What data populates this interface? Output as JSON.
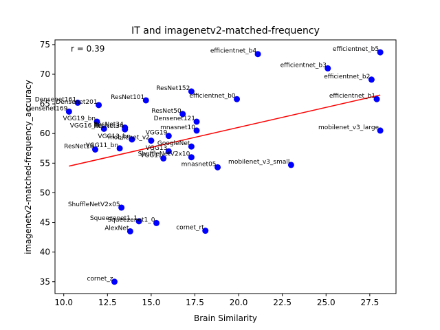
{
  "chart_data": {
    "type": "scatter",
    "title": "IT and imagenetv2-matched-frequency",
    "xlabel": "Brain Similarity",
    "ylabel": "imagenetv2-matched-frequency_accuracy",
    "annotation": "r = 0.39",
    "xlim": [
      9.5,
      29.0
    ],
    "ylim": [
      33.0,
      75.8
    ],
    "xticks": [
      10.0,
      12.5,
      15.0,
      17.5,
      20.0,
      22.5,
      25.0,
      27.5
    ],
    "xtick_labels": [
      "10.0",
      "12.5",
      "15.0",
      "17.5",
      "20.0",
      "22.5",
      "25.0",
      "27.5"
    ],
    "yticks": [
      35,
      40,
      45,
      50,
      55,
      60,
      65,
      70,
      75
    ],
    "ytick_labels": [
      "35",
      "40",
      "45",
      "50",
      "55",
      "60",
      "65",
      "70",
      "75"
    ],
    "grid": false,
    "point_color": "#0000ff",
    "fit_color": "#ff0000",
    "fit_line": {
      "x": [
        10.3,
        28.1
      ],
      "y": [
        54.5,
        66.5
      ]
    },
    "points": [
      {
        "label": "efficientnet_b5",
        "x": 28.1,
        "y": 73.7
      },
      {
        "label": "efficientnet_b4",
        "x": 21.1,
        "y": 73.4
      },
      {
        "label": "efficientnet_b3",
        "x": 25.1,
        "y": 71.0
      },
      {
        "label": "efficientnet_b2",
        "x": 27.6,
        "y": 69.1
      },
      {
        "label": "efficientnet_b1",
        "x": 27.9,
        "y": 65.8
      },
      {
        "label": "efficientnet_b0",
        "x": 19.9,
        "y": 65.8
      },
      {
        "label": "mobilenet_v3_large",
        "x": 28.1,
        "y": 60.5
      },
      {
        "label": "mobilenet_v3_small",
        "x": 23.0,
        "y": 54.7
      },
      {
        "label": "ResNet152",
        "x": 17.3,
        "y": 67.1
      },
      {
        "label": "ResNet101",
        "x": 14.7,
        "y": 65.6
      },
      {
        "label": "Densenet161",
        "x": 10.8,
        "y": 65.2
      },
      {
        "label": "Densenet201",
        "x": 12.0,
        "y": 64.8
      },
      {
        "label": "Densenet169",
        "x": 10.3,
        "y": 63.7
      },
      {
        "label": "ResNet50",
        "x": 16.8,
        "y": 63.3
      },
      {
        "label": "Densenet121",
        "x": 17.6,
        "y": 62.0
      },
      {
        "label": "VGG19_bn",
        "x": 11.9,
        "y": 62.0
      },
      {
        "label": "ResNet34",
        "x": 13.5,
        "y": 61.0
      },
      {
        "label": "VGG16_bn",
        "x": 12.3,
        "y": 60.8
      },
      {
        "label": "ResNet34",
        "x": 13.5,
        "y": 60.7
      },
      {
        "label": "mnasnet10",
        "x": 17.6,
        "y": 60.5
      },
      {
        "label": "VGG19",
        "x": 16.0,
        "y": 59.6
      },
      {
        "label": "mobilenet_v2",
        "x": 15.0,
        "y": 58.8
      },
      {
        "label": "VGG13_bn",
        "x": 13.9,
        "y": 59.0
      },
      {
        "label": "GoogleNet",
        "x": 17.3,
        "y": 57.8
      },
      {
        "label": "VGG11_bn",
        "x": 13.2,
        "y": 57.5
      },
      {
        "label": "ResNet18",
        "x": 11.8,
        "y": 57.3
      },
      {
        "label": "VGG13",
        "x": 16.0,
        "y": 57.0
      },
      {
        "label": "ShuffleNetV2x10",
        "x": 17.3,
        "y": 56.0
      },
      {
        "label": "VGG11",
        "x": 15.7,
        "y": 55.8
      },
      {
        "label": "mnasnet05",
        "x": 18.8,
        "y": 54.3
      },
      {
        "label": "ShuffleNetV2x05",
        "x": 13.3,
        "y": 47.5
      },
      {
        "label": "Squeezenet1_1",
        "x": 14.3,
        "y": 45.2
      },
      {
        "label": "Squeezenet1_0",
        "x": 15.3,
        "y": 44.9
      },
      {
        "label": "AlexNet",
        "x": 13.8,
        "y": 43.5
      },
      {
        "label": "cornet_rt",
        "x": 18.1,
        "y": 43.6
      },
      {
        "label": "cornet_z",
        "x": 12.9,
        "y": 35.0
      }
    ]
  }
}
